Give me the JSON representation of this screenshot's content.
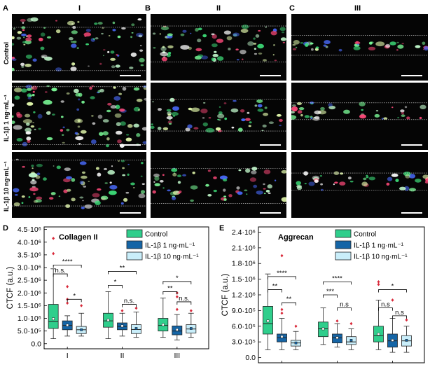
{
  "figure": {
    "panels": {
      "A": "A",
      "B": "B",
      "C": "C",
      "D": "D",
      "E": "E"
    },
    "columns": [
      "I",
      "II",
      "III"
    ],
    "rows": [
      "Control",
      "IL-1β 1 ng·mL⁻¹",
      "IL-1β 10 ng·mL⁻¹"
    ]
  },
  "colors": {
    "control": "#2fce8c",
    "il1": "#1565a6",
    "il10": "#c9eefa",
    "outlier": "#d9293a",
    "box_edge": "#222222"
  },
  "chart_data": [
    {
      "type": "box",
      "title": "Collagen II",
      "ylabel": "CTCF (a.u.)",
      "ylim": [
        -0.2,
        4.6
      ],
      "y_scale_note": "×10^6",
      "yticks": [
        "0.0",
        "5.0·10⁵",
        "1.0·10⁶",
        "1.5·10⁶",
        "2.0·10⁶",
        "2.5·10⁶",
        "3.0·10⁶",
        "3.5·10⁶",
        "4.0·10⁶",
        "4.5·10⁶"
      ],
      "ytick_values": [
        0,
        0.5,
        1.0,
        1.5,
        2.0,
        2.5,
        3.0,
        3.5,
        4.0,
        4.5
      ],
      "categories": [
        "I",
        "II",
        "III"
      ],
      "legend": [
        "Control",
        "IL-1β 1 ng·mL⁻¹",
        "IL-1β 10 ng·mL⁻¹"
      ],
      "series": [
        {
          "name": "Control",
          "boxes": [
            {
              "min": 0.2,
              "q1": 0.6,
              "median": 0.87,
              "q3": 1.55,
              "max": 2.95,
              "mean": 0.98,
              "outliers": [
                3.55,
                4.15
              ]
            },
            {
              "min": 0.2,
              "q1": 0.65,
              "median": 0.9,
              "q3": 1.2,
              "max": 2.05,
              "mean": 0.93,
              "outliers": []
            },
            {
              "min": 0.25,
              "q1": 0.5,
              "median": 0.72,
              "q3": 1.0,
              "max": 1.8,
              "mean": 0.75,
              "outliers": []
            }
          ]
        },
        {
          "name": "IL-1β 1 ng·mL⁻¹",
          "boxes": [
            {
              "min": 0.3,
              "q1": 0.55,
              "median": 0.72,
              "q3": 0.9,
              "max": 1.1,
              "mean": 0.73,
              "outliers": [
                1.6,
                1.75,
                2.25
              ]
            },
            {
              "min": 0.3,
              "q1": 0.55,
              "median": 0.68,
              "q3": 0.82,
              "max": 1.2,
              "mean": 0.7,
              "outliers": [
                1.3
              ]
            },
            {
              "min": 0.15,
              "q1": 0.35,
              "median": 0.5,
              "q3": 0.7,
              "max": 1.15,
              "mean": 0.55,
              "outliers": [
                1.35,
                1.85,
                2.0
              ]
            }
          ]
        },
        {
          "name": "IL-1β 10 ng·mL⁻¹",
          "boxes": [
            {
              "min": 0.3,
              "q1": 0.4,
              "median": 0.55,
              "q3": 0.68,
              "max": 1.2,
              "mean": 0.55,
              "outliers": [
                1.5
              ]
            },
            {
              "min": 0.25,
              "q1": 0.4,
              "median": 0.56,
              "q3": 0.75,
              "max": 1.25,
              "mean": 0.6,
              "outliers": [
                1.4
              ]
            },
            {
              "min": 0.25,
              "q1": 0.42,
              "median": 0.58,
              "q3": 0.75,
              "max": 1.2,
              "mean": 0.6,
              "outliers": [
                1.3
              ]
            }
          ]
        }
      ],
      "significance": [
        {
          "group": 0,
          "from": 0,
          "to": 1,
          "y": 2.75,
          "label": "n.s."
        },
        {
          "group": 0,
          "from": 0,
          "to": 2,
          "y": 3.1,
          "label": "****"
        },
        {
          "group": 0,
          "from": 1,
          "to": 2,
          "y": 1.75,
          "label": "*"
        },
        {
          "group": 1,
          "from": 0,
          "to": 1,
          "y": 2.3,
          "label": "*"
        },
        {
          "group": 1,
          "from": 0,
          "to": 2,
          "y": 2.85,
          "label": "**"
        },
        {
          "group": 1,
          "from": 1,
          "to": 2,
          "y": 1.55,
          "label": "n.s."
        },
        {
          "group": 2,
          "from": 0,
          "to": 1,
          "y": 2.05,
          "label": "**"
        },
        {
          "group": 2,
          "from": 0,
          "to": 2,
          "y": 2.45,
          "label": "*"
        },
        {
          "group": 2,
          "from": 1,
          "to": 2,
          "y": 1.65,
          "label": "n.s."
        }
      ]
    },
    {
      "type": "box",
      "title": "Aggrecan",
      "ylabel": "CTCF (a.u.)",
      "ylim": [
        -0.1,
        2.5
      ],
      "y_scale_note": "×10^6",
      "yticks": [
        "0.0",
        "3.0·10⁵",
        "6.0·10⁵",
        "9.0·10⁵",
        "1.2·10⁶",
        "1.5·10⁶",
        "1.8·10⁶",
        "2.1·10⁶",
        "2.4·10⁶"
      ],
      "ytick_values": [
        0,
        0.3,
        0.6,
        0.9,
        1.2,
        1.5,
        1.8,
        2.1,
        2.4
      ],
      "categories": [
        "I",
        "II",
        "III"
      ],
      "legend": [
        "Control",
        "IL-1β 1 ng·mL⁻¹",
        "IL-1β 10 ng·mL⁻¹"
      ],
      "series": [
        {
          "name": "Control",
          "boxes": [
            {
              "min": 0.15,
              "q1": 0.45,
              "median": 0.65,
              "q3": 0.98,
              "max": 1.6,
              "mean": 0.7,
              "outliers": []
            },
            {
              "min": 0.25,
              "q1": 0.4,
              "median": 0.55,
              "q3": 0.68,
              "max": 0.95,
              "mean": 0.55,
              "outliers": []
            },
            {
              "min": 0.15,
              "q1": 0.3,
              "median": 0.42,
              "q3": 0.6,
              "max": 1.1,
              "mean": 0.45,
              "outliers": [
                1.4,
                1.45
              ]
            }
          ]
        },
        {
          "name": "IL-1β 1 ng·mL⁻¹",
          "boxes": [
            {
              "min": 0.15,
              "q1": 0.3,
              "median": 0.38,
              "q3": 0.45,
              "max": 0.75,
              "mean": 0.4,
              "outliers": [
                0.85,
                0.92,
                1.95
              ]
            },
            {
              "min": 0.2,
              "q1": 0.28,
              "median": 0.38,
              "q3": 0.45,
              "max": 0.65,
              "mean": 0.38,
              "outliers": [
                0.7
              ]
            },
            {
              "min": 0.1,
              "q1": 0.2,
              "median": 0.32,
              "q3": 0.45,
              "max": 0.75,
              "mean": 0.33,
              "outliers": [
                1.1
              ]
            }
          ]
        },
        {
          "name": "IL-1β 10 ng·mL⁻¹",
          "boxes": [
            {
              "min": 0.15,
              "q1": 0.22,
              "median": 0.28,
              "q3": 0.33,
              "max": 0.5,
              "mean": 0.28,
              "outliers": [
                0.6
              ]
            },
            {
              "min": 0.15,
              "q1": 0.25,
              "median": 0.3,
              "q3": 0.4,
              "max": 0.55,
              "mean": 0.33,
              "outliers": [
                0.65
              ]
            },
            {
              "min": 0.1,
              "q1": 0.22,
              "median": 0.32,
              "q3": 0.42,
              "max": 0.6,
              "mean": 0.33,
              "outliers": [
                0.72
              ]
            }
          ]
        }
      ],
      "significance": [
        {
          "group": 0,
          "from": 0,
          "to": 1,
          "y": 1.3,
          "label": "**"
        },
        {
          "group": 0,
          "from": 0,
          "to": 2,
          "y": 1.55,
          "label": "****"
        },
        {
          "group": 0,
          "from": 1,
          "to": 2,
          "y": 1.05,
          "label": "**"
        },
        {
          "group": 1,
          "from": 0,
          "to": 1,
          "y": 1.2,
          "label": "***"
        },
        {
          "group": 1,
          "from": 0,
          "to": 2,
          "y": 1.45,
          "label": "****"
        },
        {
          "group": 1,
          "from": 1,
          "to": 2,
          "y": 0.95,
          "label": "n.s"
        },
        {
          "group": 2,
          "from": 0,
          "to": 1,
          "y": 0.95,
          "label": "n.s"
        },
        {
          "group": 2,
          "from": 0,
          "to": 2,
          "y": 1.3,
          "label": "*"
        },
        {
          "group": 2,
          "from": 1,
          "to": 2,
          "y": 0.8,
          "label": "n.s"
        }
      ]
    }
  ]
}
